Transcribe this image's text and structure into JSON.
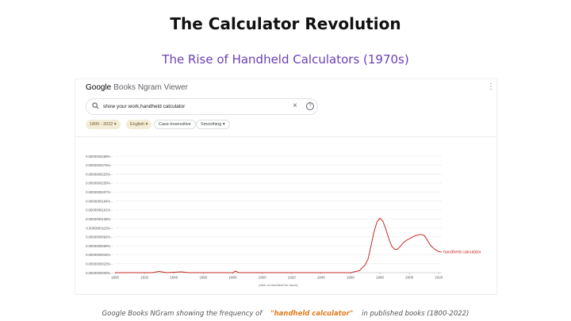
{
  "slide": {
    "title": "The Calculator Revolution",
    "subtitle": "The Rise of Handheld Calculators (1970s)"
  },
  "ngram": {
    "logo_google": "Google",
    "logo_rest": "Books Ngram Viewer",
    "menu_icon": "kebab-menu-icon",
    "search": {
      "value": "show your work,handheld calculator",
      "icon": "search-icon"
    },
    "chips": {
      "years": "1800 - 2022",
      "language": "English",
      "case": "Case-Insensitive",
      "smoothing": "Smoothing"
    },
    "x_note": "(click on line/label for focus)"
  },
  "colors": {
    "accent_title": "#6a3fb5",
    "series_line": "#c62828",
    "caption_highlight": "#e07b1d"
  },
  "chart_data": {
    "type": "line",
    "x_range": [
      1800,
      2022
    ],
    "x_ticks": [
      "1800",
      "1820",
      "1840",
      "1860",
      "1880",
      "1900",
      "1920",
      "1940",
      "1960",
      "1980",
      "2000",
      "2020"
    ],
    "y_ticks": [
      "0.0000000000%",
      "0.0000000023%",
      "0.0000000046%",
      "0.0000000069%",
      "0.0000000092%",
      "0.0000000115%",
      "0.0000000138%",
      "0.0000000161%",
      "0.0000000184%",
      "0.0000000207%",
      "0.0000000230%",
      "0.0000000253%",
      "0.0000000276%",
      "0.0000000299%"
    ],
    "ylim": [
      0,
      2.99e-08
    ],
    "grid": true,
    "series": [
      {
        "name": "handheld calculator",
        "color": "#c62828",
        "points": [
          [
            1800,
            0.0
          ],
          [
            1825,
            0.0
          ],
          [
            1830,
            3e-10
          ],
          [
            1835,
            0.0
          ],
          [
            1845,
            2e-10
          ],
          [
            1850,
            0.0
          ],
          [
            1880,
            0.0
          ],
          [
            1882,
            4e-10
          ],
          [
            1884,
            0.0
          ],
          [
            1960,
            0.0
          ],
          [
            1966,
            5e-10
          ],
          [
            1970,
            2e-09
          ],
          [
            1972,
            3.6e-09
          ],
          [
            1974,
            7e-09
          ],
          [
            1976,
            1.05e-08
          ],
          [
            1978,
            1.3e-08
          ],
          [
            1980,
            1.4e-08
          ],
          [
            1982,
            1.32e-08
          ],
          [
            1984,
            1.12e-08
          ],
          [
            1986,
            8.8e-09
          ],
          [
            1988,
            6.8e-09
          ],
          [
            1990,
            6e-09
          ],
          [
            1992,
            6e-09
          ],
          [
            1994,
            6.8e-09
          ],
          [
            1996,
            7.7e-09
          ],
          [
            1998,
            8.3e-09
          ],
          [
            2000,
            8.7e-09
          ],
          [
            2002,
            9.1e-09
          ],
          [
            2004,
            9.5e-09
          ],
          [
            2006,
            9.7e-09
          ],
          [
            2008,
            9.8e-09
          ],
          [
            2010,
            9.6e-09
          ],
          [
            2012,
            8.5e-09
          ],
          [
            2014,
            7.2e-09
          ],
          [
            2016,
            6.4e-09
          ],
          [
            2018,
            5.8e-09
          ],
          [
            2020,
            5.4e-09
          ],
          [
            2022,
            5.3e-09
          ]
        ]
      }
    ]
  },
  "caption": {
    "prefix": "Google Books NGram showing the frequency of",
    "highlight": "\"handheld calculator\"",
    "suffix": "in published books (1800-2022)"
  }
}
